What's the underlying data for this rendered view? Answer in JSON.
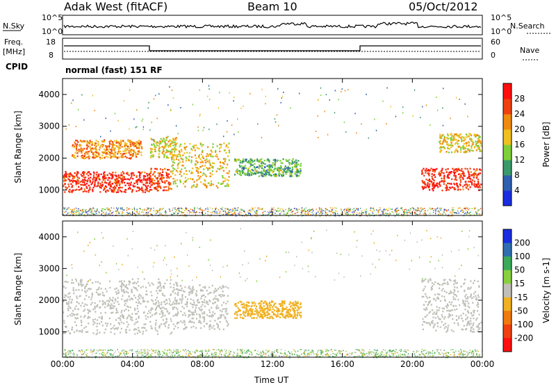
{
  "header": {
    "station": "Adak West (fitACF)",
    "beam": "Beam 10",
    "date": "05/Oct/2012"
  },
  "top_panels": {
    "nsky_label": "N.Sky",
    "nsearch_label": "N.Search",
    "nsky_ticks": [
      "10^5",
      "10^0"
    ],
    "nsearch_ticks": [
      "10^5",
      "10^0"
    ],
    "freq_label_1": "Freq.",
    "freq_label_2": "[MHz]",
    "freq_ticks": [
      "18",
      "8"
    ],
    "nave_label": "Nave",
    "nave_ticks": [
      "60",
      "0"
    ],
    "cpid_label": "CPID",
    "cpid_text": "normal (fast) 151 RF"
  },
  "chart_data": [
    {
      "type": "heatmap",
      "title": "",
      "xlabel": "Time UT",
      "ylabel": "Slant Range [km]",
      "x_ticks": [
        "00:00",
        "04:00",
        "08:00",
        "12:00",
        "16:00",
        "20:00",
        "00:00"
      ],
      "y_ticks": [
        1000,
        2000,
        3000,
        4000
      ],
      "ylim": [
        200,
        4500
      ],
      "colorbar": {
        "label": "Power [dB]",
        "ticks": [
          4,
          8,
          12,
          16,
          20,
          24,
          28
        ],
        "colors": [
          "#1a2de0",
          "#2f5fb0",
          "#3b9a6a",
          "#7fcf3a",
          "#f0c020",
          "#f08a10",
          "#f04010",
          "#ff1010"
        ]
      },
      "regions": [
        {
          "t0": 0.0,
          "t1": 5.0,
          "r0": 950,
          "r1": 1600,
          "v": 28
        },
        {
          "t0": 0.5,
          "t1": 4.5,
          "r0": 2000,
          "r1": 2600,
          "v": 22
        },
        {
          "t0": 5.0,
          "t1": 6.2,
          "r0": 1000,
          "r1": 1700,
          "v": 26
        },
        {
          "t0": 5.0,
          "t1": 6.5,
          "r0": 2000,
          "r1": 2700,
          "v": 18
        },
        {
          "t0": 6.2,
          "t1": 9.5,
          "r0": 1100,
          "r1": 2500,
          "v": 18
        },
        {
          "t0": 9.8,
          "t1": 13.6,
          "r0": 1450,
          "r1": 2000,
          "v": 12
        },
        {
          "t0": 20.5,
          "t1": 23.9,
          "r0": 1000,
          "r1": 1700,
          "v": 28
        },
        {
          "t0": 21.5,
          "t1": 23.9,
          "r0": 2200,
          "r1": 2800,
          "v": 18
        }
      ]
    },
    {
      "type": "heatmap",
      "title": "",
      "xlabel": "Time UT",
      "ylabel": "Slant Range [km]",
      "x_ticks": [
        "00:00",
        "04:00",
        "08:00",
        "12:00",
        "16:00",
        "20:00",
        "00:00"
      ],
      "y_ticks": [
        1000,
        2000,
        3000,
        4000
      ],
      "ylim": [
        200,
        4500
      ],
      "colorbar": {
        "label": "Velocity [m s-1]",
        "ticks": [
          200,
          100,
          50,
          15,
          -15,
          -50,
          -100,
          -200
        ],
        "colors": [
          "#1a2de0",
          "#2f6fb0",
          "#3bab5a",
          "#88d040",
          "#c0c0b8",
          "#f0b020",
          "#f07a10",
          "#f04010",
          "#ff1010"
        ]
      },
      "regions": [
        {
          "t0": 0.0,
          "t1": 6.5,
          "r0": 950,
          "r1": 2700,
          "v": 0
        },
        {
          "t0": 6.5,
          "t1": 9.5,
          "r0": 1100,
          "r1": 2500,
          "v": 0
        },
        {
          "t0": 9.8,
          "t1": 13.6,
          "r0": 1450,
          "r1": 2000,
          "v": -30
        },
        {
          "t0": 20.5,
          "t1": 23.9,
          "r0": 1000,
          "r1": 2700,
          "v": 0
        }
      ]
    }
  ]
}
